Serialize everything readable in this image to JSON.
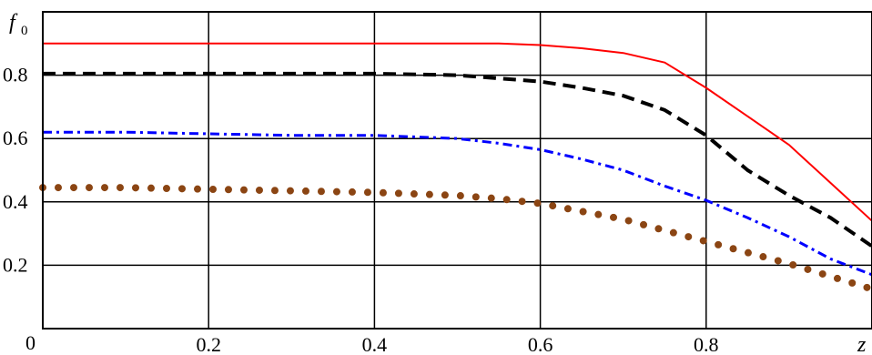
{
  "chart_data": {
    "type": "line",
    "title": "",
    "xlabel": "z",
    "ylabel": "f",
    "ylabel_subscript": "0",
    "xlim": [
      0,
      1
    ],
    "ylim": [
      0,
      1
    ],
    "grid": true,
    "x_ticks": [
      0.2,
      0.4,
      0.6,
      0.8
    ],
    "x_tick_labels": [
      "0.2",
      "0.4",
      "0.6",
      "0.8"
    ],
    "y_ticks": [
      0.2,
      0.4,
      0.6,
      0.8
    ],
    "y_tick_labels": [
      "0.2",
      "0.4",
      "0.6",
      "0.8"
    ],
    "origin_label": "0",
    "series": [
      {
        "style": "solid",
        "color": "#ff0000",
        "x": [
          0,
          0.1,
          0.2,
          0.3,
          0.4,
          0.5,
          0.55,
          0.6,
          0.65,
          0.7,
          0.75,
          0.8,
          0.85,
          0.9,
          0.95,
          1.0
        ],
        "y": [
          0.9,
          0.9,
          0.9,
          0.9,
          0.9,
          0.9,
          0.9,
          0.895,
          0.885,
          0.87,
          0.84,
          0.76,
          0.67,
          0.58,
          0.46,
          0.34
        ]
      },
      {
        "style": "dashed",
        "color": "#000000",
        "x": [
          0,
          0.1,
          0.2,
          0.3,
          0.4,
          0.5,
          0.55,
          0.6,
          0.65,
          0.7,
          0.75,
          0.8,
          0.85,
          0.9,
          0.95,
          1.0
        ],
        "y": [
          0.805,
          0.805,
          0.805,
          0.805,
          0.805,
          0.8,
          0.79,
          0.78,
          0.76,
          0.735,
          0.69,
          0.61,
          0.5,
          0.42,
          0.35,
          0.26
        ]
      },
      {
        "style": "dash-dot",
        "color": "#0000ff",
        "x": [
          0,
          0.1,
          0.2,
          0.3,
          0.4,
          0.5,
          0.55,
          0.6,
          0.65,
          0.7,
          0.75,
          0.8,
          0.85,
          0.9,
          0.95,
          1.0
        ],
        "y": [
          0.62,
          0.62,
          0.615,
          0.61,
          0.61,
          0.6,
          0.585,
          0.565,
          0.535,
          0.5,
          0.45,
          0.405,
          0.35,
          0.29,
          0.22,
          0.17
        ]
      },
      {
        "style": "dotted",
        "color": "#8b4513",
        "x": [
          0,
          0.1,
          0.2,
          0.3,
          0.4,
          0.5,
          0.55,
          0.6,
          0.65,
          0.7,
          0.75,
          0.8,
          0.85,
          0.9,
          0.95,
          1.0
        ],
        "y": [
          0.445,
          0.445,
          0.44,
          0.435,
          0.43,
          0.42,
          0.41,
          0.395,
          0.37,
          0.345,
          0.31,
          0.275,
          0.24,
          0.205,
          0.165,
          0.125
        ]
      }
    ]
  }
}
